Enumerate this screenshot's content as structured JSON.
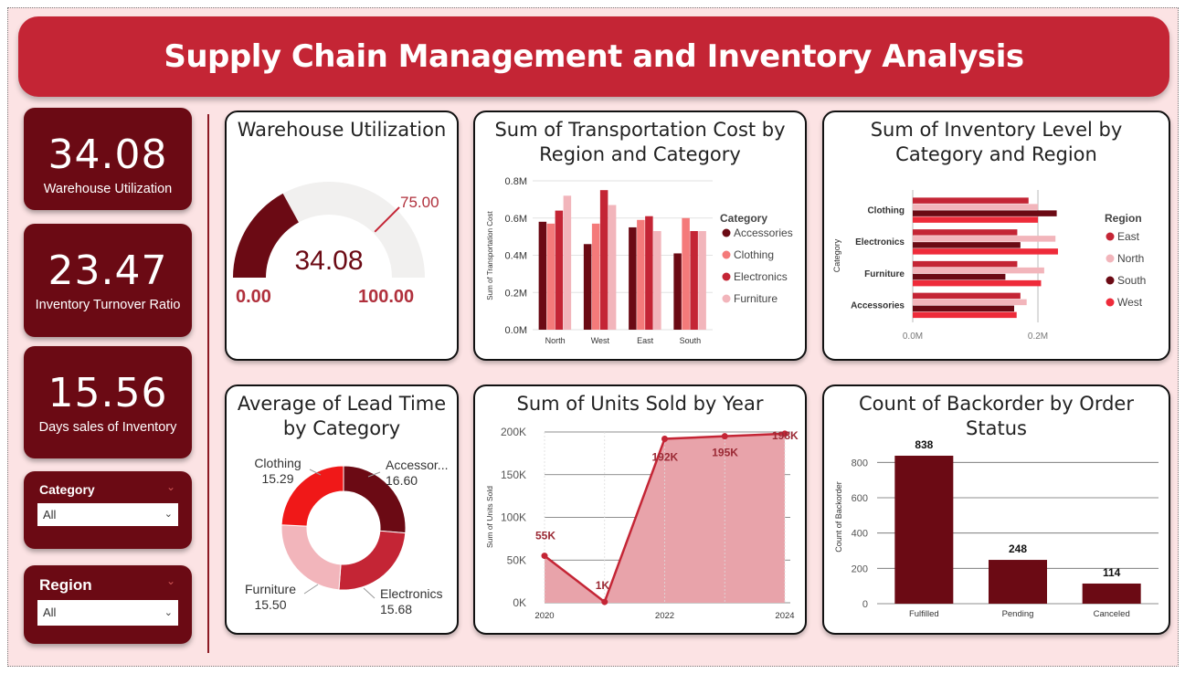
{
  "header": {
    "title": "Supply Chain Management and Inventory Analysis"
  },
  "kpis": [
    {
      "value": "34.08",
      "label": "Warehouse Utilization"
    },
    {
      "value": "23.47",
      "label": "Inventory Turnover Ratio"
    },
    {
      "value": "15.56",
      "label": "Days sales of Inventory"
    }
  ],
  "slicers": {
    "category": {
      "title": "Category",
      "value": "All"
    },
    "region": {
      "title": "Region",
      "value": "All"
    }
  },
  "colors": {
    "dark_red": "#6b0a14",
    "red": "#c42535",
    "salmon": "#f47a7a",
    "pink": "#f2b5bb",
    "bright_red": "#ee2b3a"
  },
  "chart_data": [
    {
      "type": "gauge",
      "title": "Warehouse Utilization",
      "value": 34.08,
      "min": 0,
      "max": 100,
      "target": 75,
      "value_label": "34.08",
      "min_label": "0.00",
      "max_label": "100.00",
      "target_label": "75.00"
    },
    {
      "type": "bar",
      "title": "Sum of Transportation Cost by Region and Category",
      "xlabel": "",
      "ylabel": "Sum of Transportation Cost",
      "legend_title": "Category",
      "categories": [
        "North",
        "West",
        "East",
        "South"
      ],
      "yticks": [
        "0.0M",
        "0.2M",
        "0.4M",
        "0.6M",
        "0.8M"
      ],
      "ylim": [
        0,
        0.8
      ],
      "series": [
        {
          "name": "Accessories",
          "values": [
            0.58,
            0.46,
            0.55,
            0.41
          ]
        },
        {
          "name": "Clothing",
          "values": [
            0.57,
            0.57,
            0.59,
            0.6
          ]
        },
        {
          "name": "Electronics",
          "values": [
            0.64,
            0.75,
            0.61,
            0.53
          ]
        },
        {
          "name": "Furniture",
          "values": [
            0.72,
            0.67,
            0.53,
            0.53
          ]
        }
      ]
    },
    {
      "type": "bar",
      "title": "Sum of Inventory Level by Category and Region",
      "xlabel": "",
      "ylabel": "Category",
      "legend_title": "Region",
      "categories": [
        "Clothing",
        "Electronics",
        "Furniture",
        "Accessories"
      ],
      "xticks": [
        "0.0M",
        "0.2M"
      ],
      "xlim": [
        0,
        0.27
      ],
      "series": [
        {
          "name": "East",
          "values": [
            0.185,
            0.167,
            0.167,
            0.172
          ]
        },
        {
          "name": "North",
          "values": [
            0.2,
            0.228,
            0.21,
            0.182
          ]
        },
        {
          "name": "South",
          "values": [
            0.23,
            0.172,
            0.148,
            0.162
          ]
        },
        {
          "name": "West",
          "values": [
            0.2,
            0.232,
            0.205,
            0.166
          ]
        }
      ]
    },
    {
      "type": "pie",
      "title": "Average of Lead Time by Category",
      "slices": [
        {
          "name": "Accessor...",
          "value": 16.6,
          "label": "16.60"
        },
        {
          "name": "Electronics",
          "value": 15.68,
          "label": "15.68"
        },
        {
          "name": "Furniture",
          "value": 15.5,
          "label": "15.50"
        },
        {
          "name": "Clothing",
          "value": 15.29,
          "label": "15.29"
        }
      ]
    },
    {
      "type": "area",
      "title": "Sum of Units Sold by Year",
      "xlabel": "",
      "ylabel": "Sum of Units Sold",
      "x": [
        2020,
        2021,
        2022,
        2023,
        2024
      ],
      "xticks": [
        "2020",
        "2022",
        "2024"
      ],
      "values": [
        55000,
        1000,
        192000,
        195000,
        198000
      ],
      "data_labels": [
        "55K",
        "1K",
        "192K",
        "195K",
        "198K"
      ],
      "yticks": [
        "0K",
        "50K",
        "100K",
        "150K",
        "200K"
      ],
      "ylim": [
        0,
        200000
      ]
    },
    {
      "type": "bar",
      "title": "Count of Backorder by Order Status",
      "xlabel": "",
      "ylabel": "Count of Backorder",
      "categories": [
        "Fulfilled",
        "Pending",
        "Canceled"
      ],
      "values": [
        838,
        248,
        114
      ],
      "data_labels": [
        "838",
        "248",
        "114"
      ],
      "yticks": [
        "0",
        "200",
        "400",
        "600",
        "800"
      ],
      "ylim": [
        0,
        900
      ]
    }
  ]
}
